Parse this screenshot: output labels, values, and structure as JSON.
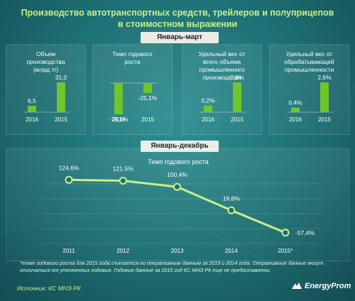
{
  "title_line1": "Производство автотранспортных средств, трейлеров и полуприцепов",
  "title_line2": "в стоимостном выражении",
  "section1_label": "Январь-март",
  "section2_label": "Январь-декабрь",
  "panels": [
    {
      "title": "Объем производства (млрд тг)",
      "title_lines": [
        "Объем",
        "производства",
        "(млрд тг)"
      ]
    },
    {
      "title": "Темп годового роста",
      "title_lines": [
        "Темп годового",
        "роста"
      ]
    },
    {
      "title": "Удельный вес от всего объема промышленного производства",
      "title_lines": [
        "Удельный вес от",
        "всего объема",
        "промышленного",
        "производства"
      ]
    },
    {
      "title": "Удельный вес от обрабатывающей промышленности",
      "title_lines": [
        "Удельный вес от",
        "обрабатывающей",
        "промышленности"
      ]
    }
  ],
  "line_title": "Темп годового роста",
  "note": "*темп годового роста для 2015 года считается по оперативным данным за 2015 и 2014 года. Оперативные данные могут отличаться от уточненных годовых. Годовые данные за 2015 год КС МНЭ РК еще не предоставлены.",
  "source": "Источник: КС МНЭ РК",
  "logo_text": "EnergyProm",
  "colors": {
    "accent": "#8fd13a",
    "title": "#c9f08a",
    "bar": "#6fc52a",
    "line": "#c9f08a"
  },
  "chart_data": [
    {
      "type": "bar",
      "title": "Объем производства (млрд тг)",
      "categories": [
        "2016",
        "2015"
      ],
      "values": [
        6.5,
        31.0
      ],
      "labels": [
        "6,5",
        "31,0"
      ]
    },
    {
      "type": "bar",
      "title": "Темп годового роста",
      "categories": [
        "2016",
        "2015"
      ],
      "values": [
        -79.1,
        -25.1
      ],
      "labels": [
        "-79,1%",
        "-25,1%"
      ]
    },
    {
      "type": "bar",
      "title": "Удельный вес от всего объема промышленного производства",
      "categories": [
        "2016",
        "2015"
      ],
      "values": [
        0.2,
        0.9
      ],
      "labels": [
        "0,2%",
        "0,9%"
      ]
    },
    {
      "type": "bar",
      "title": "Удельный вес от обрабатывающей промышленности",
      "categories": [
        "2016",
        "2015"
      ],
      "values": [
        0.4,
        2.6
      ],
      "labels": [
        "0,4%",
        "2,6%"
      ]
    },
    {
      "type": "line",
      "title": "Темп годового роста",
      "categories": [
        "2011",
        "2012",
        "2013",
        "2014",
        "2015*"
      ],
      "values": [
        124.6,
        121.5,
        100.4,
        19.6,
        -57.4
      ],
      "labels": [
        "124,6%",
        "121,5%",
        "100,4%",
        "19,6%",
        "-57,4%"
      ]
    }
  ]
}
